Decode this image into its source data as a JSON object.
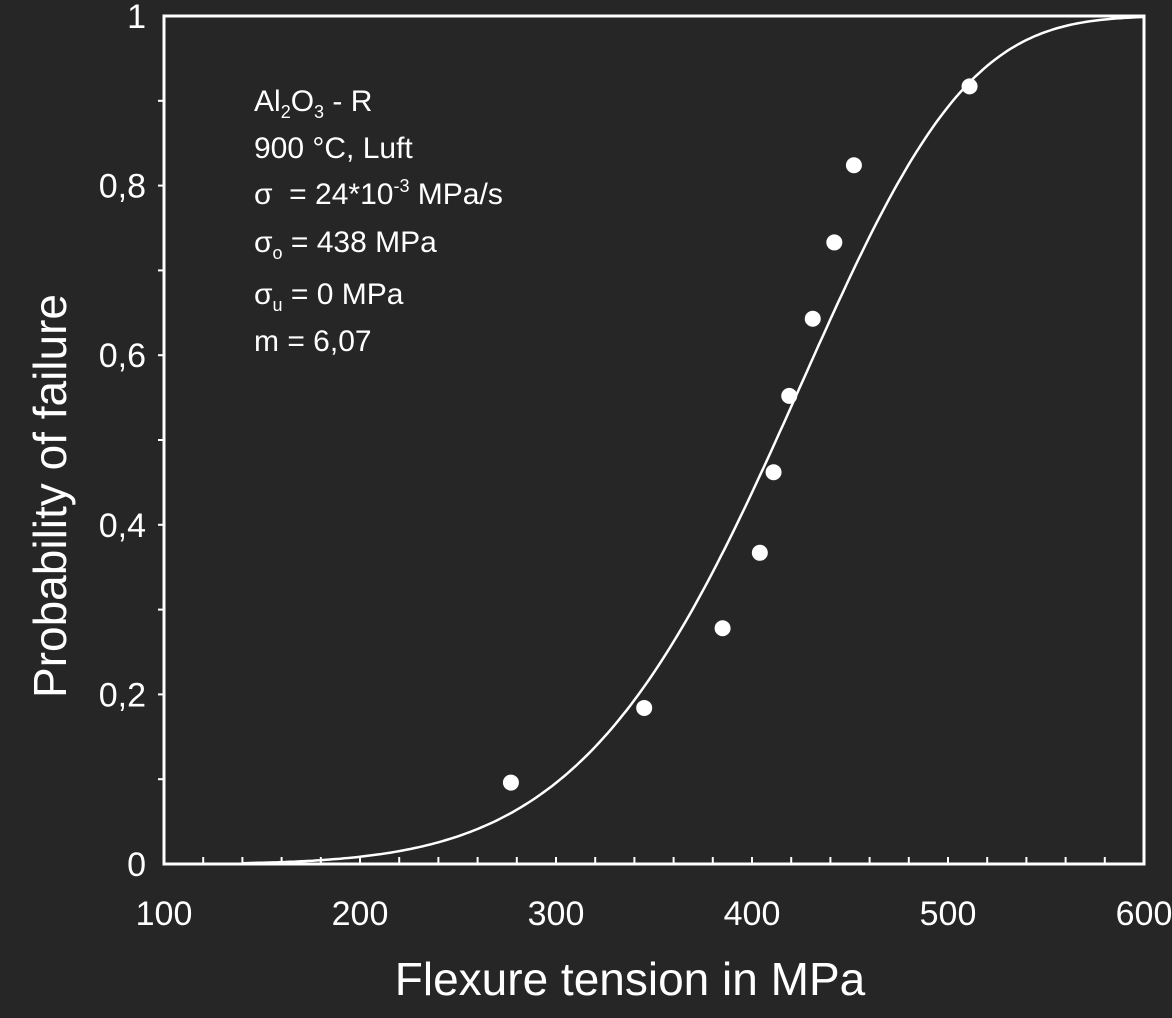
{
  "chart_data": {
    "type": "scatter",
    "xlabel": "Flexure tension in MPa",
    "ylabel": "Probability of failure",
    "xlim": [
      100,
      600
    ],
    "ylim": [
      0,
      1
    ],
    "x_ticks": [
      100,
      200,
      300,
      400,
      500,
      600
    ],
    "x_tick_labels": [
      "100",
      "200",
      "300",
      "400",
      "500",
      "600"
    ],
    "y_ticks": [
      0,
      0.2,
      0.4,
      0.6,
      0.8,
      1
    ],
    "y_tick_labels": [
      "0",
      "0,2",
      "0,4",
      "0,6",
      "0,8",
      "1"
    ],
    "grid": false,
    "points": [
      {
        "x": 277,
        "y": 0.096
      },
      {
        "x": 345,
        "y": 0.184
      },
      {
        "x": 385,
        "y": 0.278
      },
      {
        "x": 404,
        "y": 0.367
      },
      {
        "x": 411,
        "y": 0.462
      },
      {
        "x": 419,
        "y": 0.552
      },
      {
        "x": 431,
        "y": 0.643
      },
      {
        "x": 442,
        "y": 0.733
      },
      {
        "x": 452,
        "y": 0.824
      },
      {
        "x": 511,
        "y": 0.917
      }
    ],
    "fit_curve": {
      "model": "weibull",
      "sigma_0": 438,
      "sigma_u": 0,
      "m": 6.07
    },
    "annotation": {
      "line1_main": "Al",
      "line1_sub1": "2",
      "line1_mid": "O",
      "line1_sub2": "3",
      "line1_tail": " - R",
      "line2": "900 °C, Luft",
      "line3_sym": "σ",
      "line3_pre": "  = 24*10",
      "line3_sup": "-3",
      "line3_post": " MPa/s",
      "line4_sym": "σ",
      "line4_sub": "o",
      "line4_rest": " = 438 MPa",
      "line5_sym": "σ",
      "line5_sub": "u",
      "line5_rest": " = 0 MPa",
      "line6": "m = 6,07"
    },
    "colors": {
      "background": "#262626",
      "foreground": "#ffffff"
    }
  }
}
